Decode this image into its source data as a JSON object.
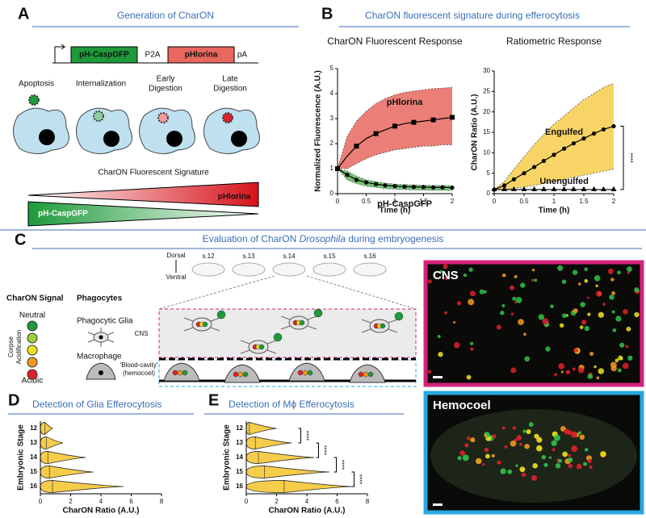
{
  "panel_a": {
    "label": "A",
    "title": "Generation of CharON",
    "construct": [
      "pH-CaspGFP",
      "P2A",
      "pHlorina",
      "pA"
    ],
    "stages": [
      [
        "Apoptosis"
      ],
      [
        "Internalization"
      ],
      [
        "Early",
        "Digestion"
      ],
      [
        "Late",
        "Digestion"
      ]
    ],
    "signature_title": "CharON Fluorescent Signature",
    "gradient_labels": [
      "pHlorina",
      "pH-CaspGFP"
    ]
  },
  "panel_b": {
    "label": "B",
    "title": "CharON fluorescent signature during efferocytosis"
  },
  "panel_c": {
    "label": "C",
    "title_parts": [
      "Evaluation of CharON ",
      "Drosophila",
      " during embryogenesis"
    ],
    "axis": [
      "Dorsal",
      "Ventral"
    ],
    "stages": [
      "s.12",
      "s.13",
      "s.14",
      "s.15",
      "s.16"
    ],
    "signal_title": "CharON Signal",
    "signal_labels": [
      "Neutral",
      "Corpse",
      "Acidification",
      "Acidic"
    ],
    "phagocytes_title": "Phagocytes",
    "phagocytes": [
      "Phagocytic Glia",
      "Macrophage"
    ],
    "regions": [
      "CNS",
      "'Blood-cavity'",
      "(hemocoel)"
    ],
    "images": [
      "CNS",
      "Hemocoel"
    ]
  },
  "panel_d": {
    "label": "D"
  },
  "panel_e": {
    "label": "E"
  },
  "chart_data": [
    {
      "type": "line",
      "title": "CharON Fluorescent Response",
      "x_label": "Time (h)",
      "y_label": "Normalized Fluorescence (A.U.)",
      "x": [
        0,
        0.17,
        0.33,
        0.5,
        0.67,
        0.83,
        1,
        1.17,
        1.33,
        1.5,
        1.67,
        1.83,
        2
      ],
      "xlim": [
        0,
        2
      ],
      "xticks": [
        0,
        0.5,
        1,
        1.5,
        2
      ],
      "ylim": [
        0,
        5
      ],
      "yticks": [
        0,
        1,
        2,
        3,
        4,
        5
      ],
      "series": [
        {
          "name": "pHlorina",
          "color": "#e8675e",
          "marker": "square",
          "values": [
            1,
            1.5,
            1.9,
            2.2,
            2.4,
            2.55,
            2.7,
            2.8,
            2.85,
            2.9,
            2.95,
            3,
            3.05
          ],
          "upper": [
            1,
            2.3,
            2.9,
            3.3,
            3.6,
            3.8,
            3.95,
            4.05,
            4.1,
            4.15,
            4.2,
            4.22,
            4.25
          ],
          "lower": [
            1,
            1,
            1.2,
            1.4,
            1.55,
            1.65,
            1.75,
            1.8,
            1.85,
            1.9,
            1.9,
            1.95,
            1.95
          ]
        },
        {
          "name": "pH-CaspGFP",
          "color": "#5cb85c",
          "marker": "circle",
          "values": [
            1,
            0.75,
            0.55,
            0.45,
            0.38,
            0.33,
            0.3,
            0.28,
            0.27,
            0.26,
            0.25,
            0.25,
            0.24
          ],
          "upper": [
            1,
            0.9,
            0.7,
            0.55,
            0.48,
            0.42,
            0.38,
            0.36,
            0.35,
            0.34,
            0.33,
            0.33,
            0.32
          ],
          "lower": [
            1,
            0.55,
            0.4,
            0.3,
            0.25,
            0.2,
            0.18,
            0.16,
            0.15,
            0.14,
            0.13,
            0.13,
            0.12
          ]
        }
      ]
    },
    {
      "type": "line",
      "title": "Ratiometric Response",
      "x_label": "Time (h)",
      "y_label": "CharON Ratio (A.U.)",
      "x": [
        0,
        0.17,
        0.33,
        0.5,
        0.67,
        0.83,
        1,
        1.17,
        1.33,
        1.5,
        1.67,
        1.83,
        2
      ],
      "xlim": [
        0,
        2
      ],
      "xticks": [
        0,
        0.5,
        1,
        1.5,
        2
      ],
      "ylim": [
        0,
        30
      ],
      "yticks": [
        0,
        5,
        10,
        15,
        20,
        25,
        30
      ],
      "annotation": "****",
      "series": [
        {
          "name": "Engulfed",
          "color": "#f6cd4a",
          "marker": "circle",
          "values": [
            1,
            2,
            3.5,
            5,
            6.5,
            8,
            9.5,
            11,
            12.3,
            13.5,
            14.7,
            15.7,
            16.5
          ],
          "upper": [
            1,
            3,
            6,
            9,
            12,
            14.5,
            17,
            19,
            21,
            23,
            24.5,
            26,
            27
          ],
          "lower": [
            1,
            1,
            1.3,
            1.6,
            2,
            2.5,
            3,
            3.5,
            4,
            4.5,
            5,
            5.5,
            6
          ]
        },
        {
          "name": "Unengulfed",
          "color": "#000000",
          "marker": "triangle",
          "values": [
            1,
            1,
            1,
            1,
            1,
            1,
            1,
            1,
            1,
            1,
            1,
            1,
            1
          ]
        }
      ]
    },
    {
      "type": "violin",
      "title": "Detection of Glia Efferocytosis",
      "x_label": "CharON Ratio (A.U.)",
      "y_label": "Embryonic Stage",
      "categories": [
        "12",
        "13",
        "14",
        "15",
        "16"
      ],
      "values": [
        0.3,
        0.4,
        0.5,
        0.6,
        0.8
      ],
      "max": [
        0.8,
        1.5,
        3,
        3.5,
        5.5
      ],
      "xlim": [
        0,
        8
      ],
      "xticks": [
        0,
        2,
        4,
        6,
        8
      ],
      "color": "#f6cd4a"
    },
    {
      "type": "violin",
      "title": "Detection of Mϕ Efferocytosis",
      "x_label": "CharON Ratio (A.U.)",
      "y_label": "Embryonic Stage",
      "categories": [
        "12",
        "13",
        "14",
        "15",
        "16"
      ],
      "values": [
        0.2,
        0.6,
        0.8,
        1.2,
        2.5
      ],
      "max": [
        2,
        3,
        4.5,
        5.5,
        7
      ],
      "xlim": [
        0,
        8
      ],
      "xticks": [
        0,
        2,
        4,
        6,
        8
      ],
      "color": "#f6cd4a",
      "annotations": [
        "****",
        "****",
        "****",
        "****"
      ]
    }
  ]
}
